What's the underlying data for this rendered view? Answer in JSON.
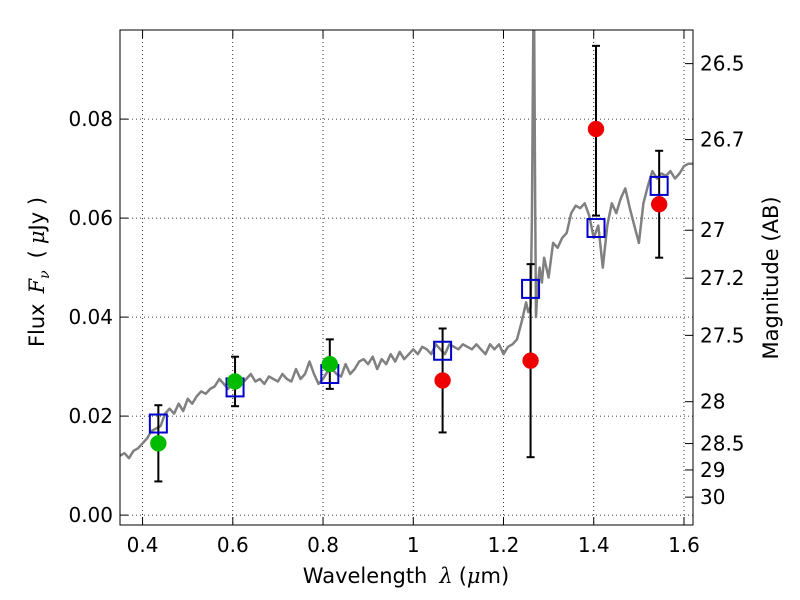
{
  "chart_data": {
    "type": "scatter",
    "xlabel": {
      "text": "Wavelength",
      "symbol": "λ",
      "unit_open": "(",
      "unit_mu": "μ",
      "unit_rest": "m)"
    },
    "ylabel": {
      "text": "Flux",
      "symbol": "F",
      "subscript": "ν",
      "unit_open": "(",
      "unit_mu": "μ",
      "unit_rest": "Jy )"
    },
    "y2label": "Magnitude (AB)",
    "xlim": [
      0.35,
      1.62
    ],
    "ylim": [
      -0.002,
      0.098
    ],
    "grid": true,
    "x_ticks": [
      0.4,
      0.6,
      0.8,
      1.0,
      1.2,
      1.4,
      1.6
    ],
    "x_tick_labels": [
      "0.4",
      "0.6",
      "0.8",
      "1",
      "1.2",
      "1.4",
      "1.6"
    ],
    "y_ticks": [
      0.0,
      0.02,
      0.04,
      0.06,
      0.08
    ],
    "y_tick_labels": [
      "0.00",
      "0.02",
      "0.04",
      "0.06",
      "0.08"
    ],
    "y2_ticks": [
      26.5,
      26.7,
      27.0,
      27.2,
      27.5,
      28.0,
      28.5,
      29.0,
      30.0
    ],
    "y2_tick_labels": [
      "26.5",
      "26.7",
      "27",
      "27.2",
      "27.5",
      "28",
      "28.5",
      "29",
      "30"
    ],
    "series": [
      {
        "type": "line",
        "color": "#808080",
        "x": [
          0.35,
          0.36,
          0.37,
          0.38,
          0.39,
          0.4,
          0.41,
          0.42,
          0.43,
          0.44,
          0.45,
          0.46,
          0.47,
          0.48,
          0.49,
          0.5,
          0.51,
          0.52,
          0.53,
          0.54,
          0.55,
          0.56,
          0.57,
          0.58,
          0.59,
          0.6,
          0.61,
          0.62,
          0.63,
          0.64,
          0.65,
          0.66,
          0.67,
          0.68,
          0.69,
          0.7,
          0.71,
          0.72,
          0.73,
          0.74,
          0.75,
          0.76,
          0.77,
          0.78,
          0.79,
          0.8,
          0.81,
          0.82,
          0.83,
          0.84,
          0.85,
          0.86,
          0.87,
          0.88,
          0.89,
          0.9,
          0.91,
          0.92,
          0.93,
          0.94,
          0.95,
          0.96,
          0.97,
          0.98,
          0.99,
          1.0,
          1.01,
          1.02,
          1.03,
          1.04,
          1.05,
          1.06,
          1.07,
          1.08,
          1.09,
          1.1,
          1.11,
          1.12,
          1.13,
          1.14,
          1.15,
          1.16,
          1.17,
          1.18,
          1.19,
          1.2,
          1.21,
          1.22,
          1.23,
          1.24,
          1.25,
          1.255,
          1.26,
          1.263,
          1.266,
          1.268,
          1.27,
          1.272,
          1.275,
          1.28,
          1.285,
          1.29,
          1.3,
          1.31,
          1.32,
          1.33,
          1.34,
          1.35,
          1.36,
          1.37,
          1.38,
          1.39,
          1.4,
          1.41,
          1.42,
          1.43,
          1.44,
          1.45,
          1.46,
          1.47,
          1.48,
          1.49,
          1.5,
          1.51,
          1.52,
          1.53,
          1.54,
          1.55,
          1.56,
          1.57,
          1.58,
          1.59,
          1.6,
          1.61,
          1.62
        ],
        "y": [
          0.012,
          0.0125,
          0.0115,
          0.013,
          0.0135,
          0.0145,
          0.0155,
          0.017,
          0.0175,
          0.018,
          0.0205,
          0.0215,
          0.0205,
          0.0225,
          0.021,
          0.0235,
          0.0225,
          0.024,
          0.025,
          0.0245,
          0.0255,
          0.026,
          0.0275,
          0.0265,
          0.0255,
          0.027,
          0.028,
          0.0265,
          0.0275,
          0.0285,
          0.027,
          0.0275,
          0.0265,
          0.028,
          0.0275,
          0.027,
          0.0285,
          0.0275,
          0.027,
          0.0295,
          0.0275,
          0.0285,
          0.031,
          0.0285,
          0.0265,
          0.0275,
          0.029,
          0.0295,
          0.0285,
          0.028,
          0.0305,
          0.0285,
          0.0295,
          0.031,
          0.0315,
          0.0305,
          0.032,
          0.0295,
          0.0315,
          0.0305,
          0.0325,
          0.031,
          0.033,
          0.0315,
          0.0325,
          0.0335,
          0.0325,
          0.034,
          0.0335,
          0.0325,
          0.0345,
          0.0335,
          0.0325,
          0.0345,
          0.034,
          0.0335,
          0.0345,
          0.034,
          0.0335,
          0.0345,
          0.0335,
          0.0325,
          0.0345,
          0.0335,
          0.0345,
          0.0325,
          0.034,
          0.0345,
          0.0355,
          0.039,
          0.043,
          0.041,
          0.042,
          0.06,
          0.098,
          0.098,
          0.065,
          0.04,
          0.045,
          0.05,
          0.047,
          0.052,
          0.048,
          0.055,
          0.054,
          0.056,
          0.057,
          0.061,
          0.0625,
          0.062,
          0.063,
          0.0605,
          0.056,
          0.0585,
          0.05,
          0.0585,
          0.063,
          0.061,
          0.064,
          0.066,
          0.062,
          0.0585,
          0.055,
          0.063,
          0.0665,
          0.0695,
          0.068,
          0.069,
          0.0685,
          0.0695,
          0.068,
          0.069,
          0.0705,
          0.071,
          0.071
        ]
      },
      {
        "type": "squares",
        "color": "#0000cc",
        "x": [
          0.435,
          0.605,
          0.815,
          1.065,
          1.26,
          1.405,
          1.545
        ],
        "y": [
          0.0185,
          0.0258,
          0.0285,
          0.0332,
          0.0457,
          0.058,
          0.0665
        ]
      },
      {
        "type": "points",
        "color": "#00bb00",
        "x": [
          0.435,
          0.605,
          0.815
        ],
        "y": [
          0.0145,
          0.027,
          0.0305
        ],
        "yerr_low": [
          0.0077,
          0.005,
          0.005
        ],
        "yerr_high": [
          0.0077,
          0.005,
          0.005
        ]
      },
      {
        "type": "points",
        "color": "#ee0000",
        "x": [
          1.065,
          1.26,
          1.405,
          1.545
        ],
        "y": [
          0.0272,
          0.0312,
          0.078,
          0.0628
        ],
        "yerr_low": [
          0.0105,
          0.0195,
          0.0175,
          0.0108
        ],
        "yerr_high": [
          0.0105,
          0.0195,
          0.0168,
          0.0108
        ]
      }
    ]
  }
}
